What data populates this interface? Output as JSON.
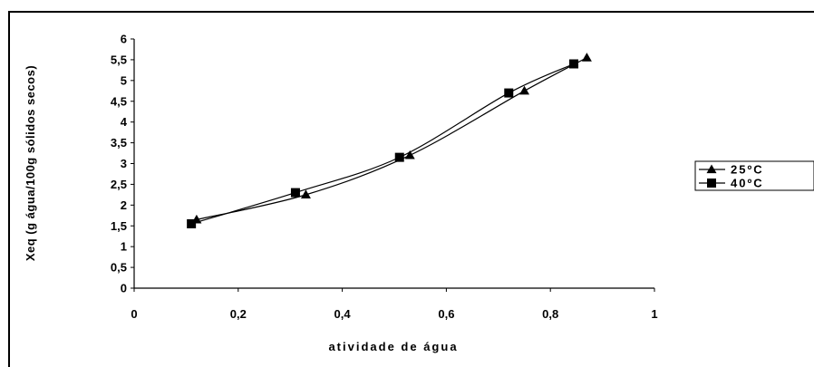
{
  "chart_data": {
    "type": "line",
    "title": "",
    "xlabel": "atividade de água",
    "ylabel": "Xeq (g água/100g sólidos secos)",
    "xlim": [
      0,
      1
    ],
    "ylim": [
      0,
      6
    ],
    "x_ticks": [
      0,
      0.2,
      0.4,
      0.6,
      0.8,
      1
    ],
    "x_tick_labels": [
      "0",
      "0,2",
      "0,4",
      "0,6",
      "0,8",
      "1"
    ],
    "y_ticks": [
      0,
      0.5,
      1,
      1.5,
      2,
      2.5,
      3,
      3.5,
      4,
      4.5,
      5,
      5.5,
      6
    ],
    "y_tick_labels": [
      "0",
      "0,5",
      "1",
      "1,5",
      "2",
      "2,5",
      "3",
      "3,5",
      "4",
      "4,5",
      "5",
      "5,5",
      "6"
    ],
    "grid": false,
    "legend_position": "right",
    "series": [
      {
        "name": "25ºC",
        "marker": "triangle",
        "color": "#000000",
        "x": [
          0.12,
          0.33,
          0.53,
          0.75,
          0.87
        ],
        "y": [
          1.65,
          2.25,
          3.2,
          4.75,
          5.55
        ]
      },
      {
        "name": "40ºC",
        "marker": "square",
        "color": "#000000",
        "x": [
          0.11,
          0.31,
          0.51,
          0.72,
          0.845
        ],
        "y": [
          1.55,
          2.3,
          3.15,
          4.7,
          5.4
        ]
      }
    ]
  }
}
